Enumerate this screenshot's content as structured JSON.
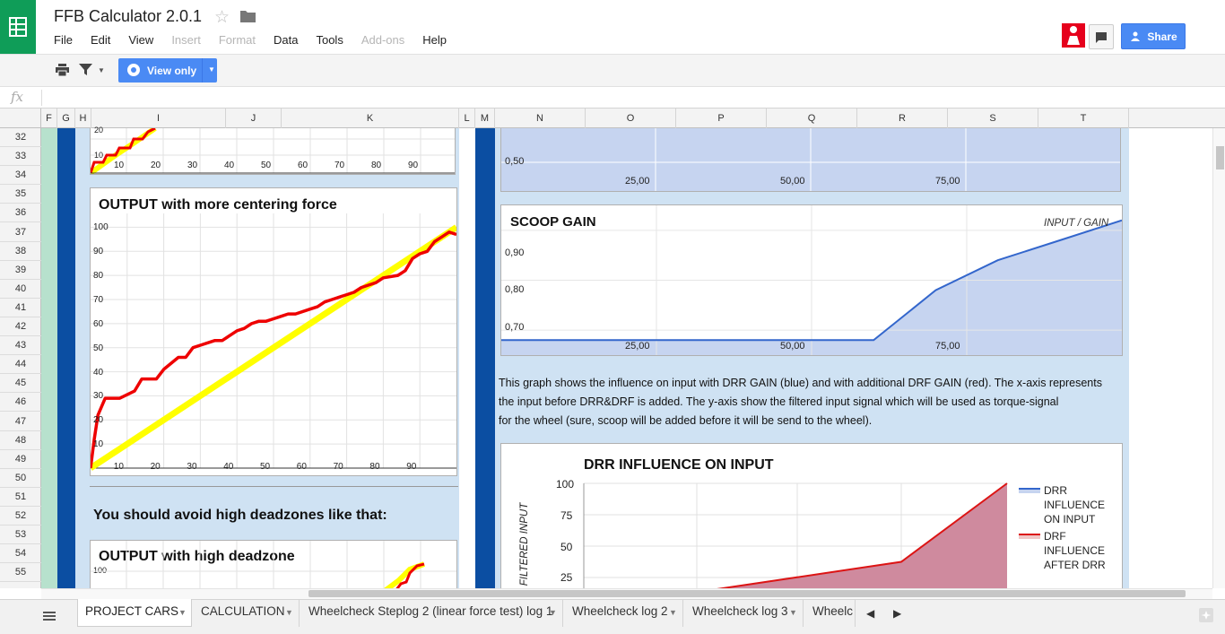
{
  "app": {
    "title": "FFB Calculator 2.0.1",
    "menu": [
      "File",
      "Edit",
      "View",
      "Insert",
      "Format",
      "Data",
      "Tools",
      "Add-ons",
      "Help"
    ],
    "menu_disabled": [
      "Insert",
      "Format",
      "Add-ons"
    ],
    "share_label": "Share",
    "view_only_label": "View only",
    "fx_label": "fx",
    "accent": "#4a8af4"
  },
  "columns": [
    "F",
    "G",
    "H",
    "I",
    "J",
    "K",
    "L",
    "M",
    "N",
    "O",
    "P",
    "Q",
    "R",
    "S",
    "T"
  ],
  "rows": [
    "32",
    "33",
    "34",
    "35",
    "36",
    "37",
    "38",
    "39",
    "40",
    "41",
    "42",
    "43",
    "44",
    "45",
    "46",
    "47",
    "48",
    "49",
    "50",
    "51",
    "52",
    "53",
    "54",
    "55"
  ],
  "left_panel": {
    "top_chart_ticks_x": [
      "10",
      "20",
      "30",
      "40",
      "50",
      "60",
      "70",
      "80",
      "90"
    ],
    "top_chart_ticks_y": [
      "20",
      "10"
    ],
    "chart1_title": "OUTPUT with more centering force",
    "chart1_ticks_y": [
      "100",
      "90",
      "80",
      "70",
      "60",
      "50",
      "40",
      "30",
      "20",
      "10"
    ],
    "chart1_ticks_x": [
      "10",
      "20",
      "30",
      "40",
      "50",
      "60",
      "70",
      "80",
      "90"
    ],
    "warning": "You should avoid high deadzones like that:",
    "chart2_title": "OUTPUT with high deadzone",
    "chart2_tick_y": "100"
  },
  "right_panel": {
    "top_chart_tick_y": "0,50",
    "top_chart_ticks_x": [
      "25,00",
      "50,00",
      "75,00"
    ],
    "scoop_title": "SCOOP GAIN",
    "scoop_legend": "INPUT / GAIN",
    "scoop_ticks_y": [
      "0,90",
      "0,80",
      "0,70"
    ],
    "scoop_ticks_x": [
      "25,00",
      "50,00",
      "75,00"
    ],
    "description": [
      "This graph shows the influence on input with DRR GAIN (blue) and with additional DRF GAIN (red). The x-axis represents",
      "the input before DRR&DRF is added. The y-axis show the filtered input signal which will be used as torque-signal",
      "for the wheel (sure, scoop will be added before it will be send to the wheel)."
    ],
    "drr_title": "DRR INFLUENCE ON INPUT",
    "drr_ylabel": "FILTERED INPUT",
    "drr_ticks_y": [
      "100",
      "75",
      "50",
      "25"
    ],
    "legend": [
      {
        "lines": [
          "DRR",
          "INFLUENCE",
          "ON INPUT"
        ],
        "color": "#3366cc"
      },
      {
        "lines": [
          "DRF",
          "INFLUENCE",
          "AFTER DRR"
        ],
        "color": "#dc1414"
      }
    ]
  },
  "chart_data": [
    {
      "type": "line",
      "title": "OUTPUT with more centering force",
      "series": [
        {
          "color": "#ffff00",
          "x": [
            0,
            100
          ],
          "y": [
            0,
            100
          ]
        },
        {
          "color": "#ee0000",
          "x": [
            0,
            1,
            2,
            4,
            8,
            12,
            14,
            18,
            20,
            24,
            26,
            28,
            30,
            34,
            36,
            38,
            40,
            42,
            44,
            46,
            48,
            50,
            52,
            54,
            56,
            60,
            62,
            64,
            66,
            68,
            70,
            72,
            74,
            76,
            78,
            80,
            84,
            86,
            88,
            90,
            92,
            94,
            96,
            98,
            100
          ],
          "y": [
            0,
            12,
            22,
            29,
            29,
            32,
            37,
            37,
            41,
            46,
            46,
            50,
            51,
            53,
            53,
            55,
            57,
            58,
            60,
            61,
            61,
            62,
            63,
            64,
            64,
            66,
            67,
            69,
            70,
            71,
            72,
            73,
            75,
            76,
            77,
            79,
            80,
            82,
            87,
            89,
            90,
            94,
            96,
            98,
            97
          ]
        }
      ],
      "xlim": [
        0,
        100
      ],
      "ylim": [
        0,
        105
      ]
    },
    {
      "type": "area",
      "title": "SCOOP GAIN",
      "series": [
        {
          "name": "INPUT / GAIN",
          "color": "#3366cc",
          "x": [
            0,
            40,
            60,
            70,
            80,
            90,
            100
          ],
          "y": [
            0.68,
            0.68,
            0.68,
            0.78,
            0.84,
            0.88,
            0.92
          ]
        }
      ],
      "ylim": [
        0.65,
        0.95
      ]
    },
    {
      "type": "area",
      "title": "DRR INFLUENCE ON INPUT",
      "ylabel": "FILTERED INPUT",
      "series": [
        {
          "name": "DRF INFLUENCE AFTER DRR",
          "color": "#dc1414",
          "x": [
            0,
            25,
            50,
            75,
            100
          ],
          "y": [
            0,
            12.5,
            25,
            37.5,
            100
          ]
        }
      ],
      "ylim": [
        0,
        100
      ]
    }
  ],
  "sheet_tabs": [
    {
      "label": "PROJECT CARS",
      "active": true
    },
    {
      "label": "CALCULATION",
      "active": false
    },
    {
      "label": "Wheelcheck Steplog 2 (linear force test) log 1",
      "active": false
    },
    {
      "label": "Wheelcheck log 2",
      "active": false
    },
    {
      "label": "Wheelcheck log 3",
      "active": false
    },
    {
      "label": "Wheelc",
      "active": false
    }
  ]
}
